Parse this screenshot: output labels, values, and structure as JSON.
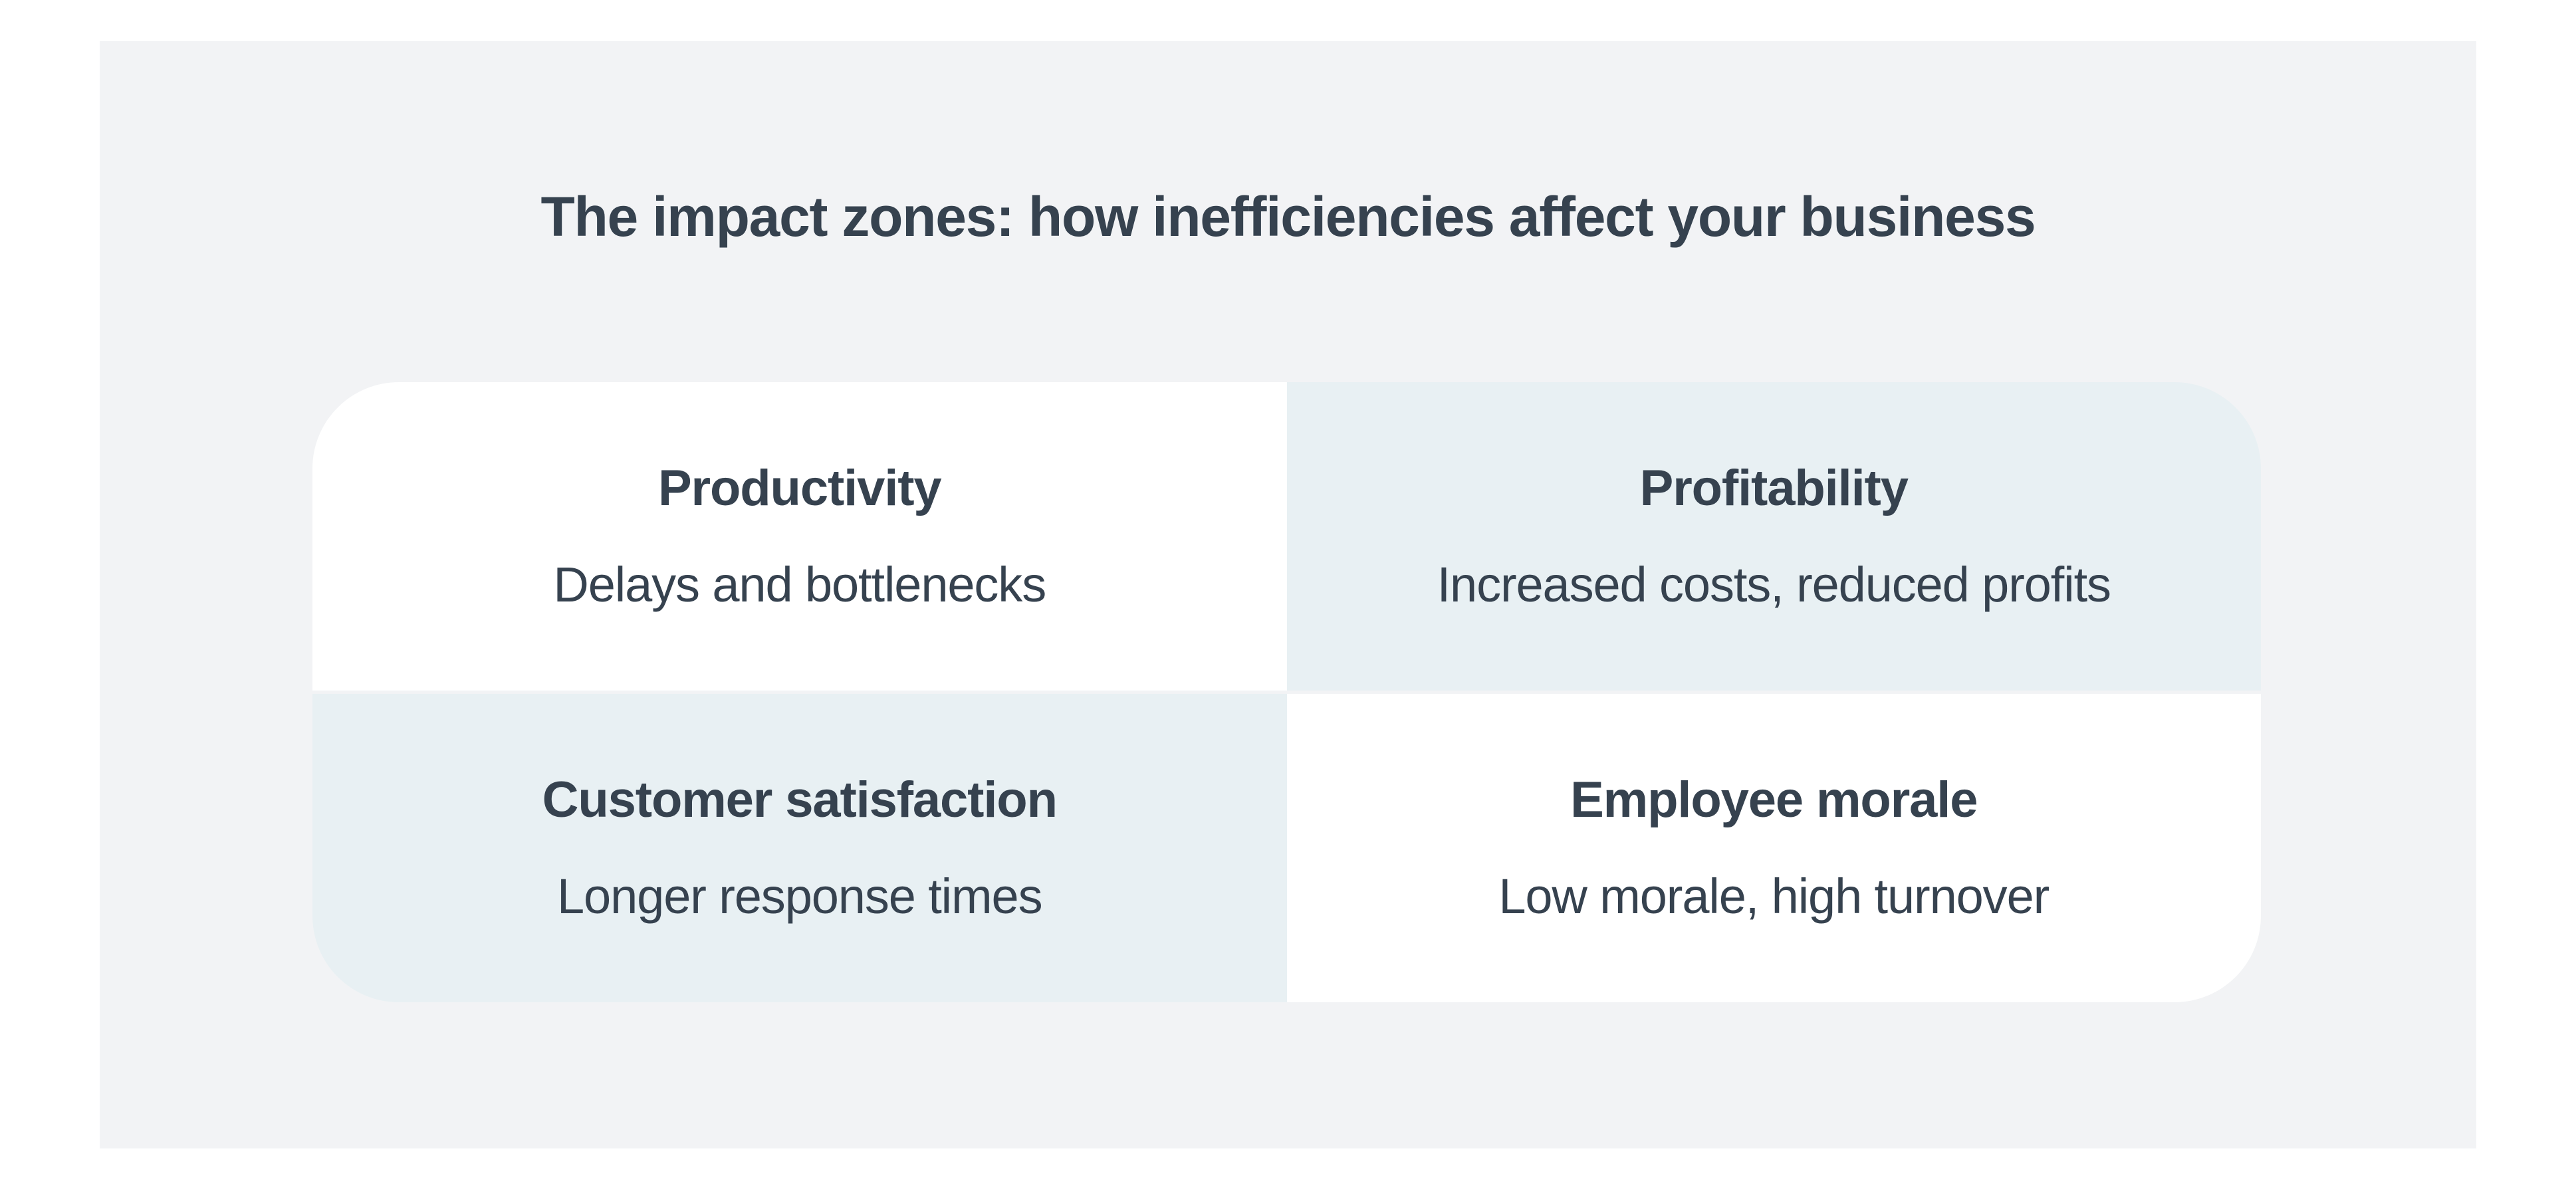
{
  "header": {
    "title": "The impact zones: how inefficiencies affect your business"
  },
  "quadrants": [
    {
      "name": "Productivity",
      "description": "Delays and bottlenecks",
      "background": "#ffffff"
    },
    {
      "name": "Profitability",
      "description": "Increased costs, reduced profits",
      "background": "#e8f0f3"
    },
    {
      "name": "Customer satisfaction",
      "description": "Longer response times",
      "background": "#e8f0f3"
    },
    {
      "name": "Employee morale",
      "description": "Low morale, high turnover",
      "background": "#ffffff"
    }
  ],
  "colors": {
    "page_background": "#ffffff",
    "panel_background": "#f2f3f5",
    "tile_white": "#ffffff",
    "tile_blue": "#e8f0f3",
    "text": "#36424f"
  }
}
